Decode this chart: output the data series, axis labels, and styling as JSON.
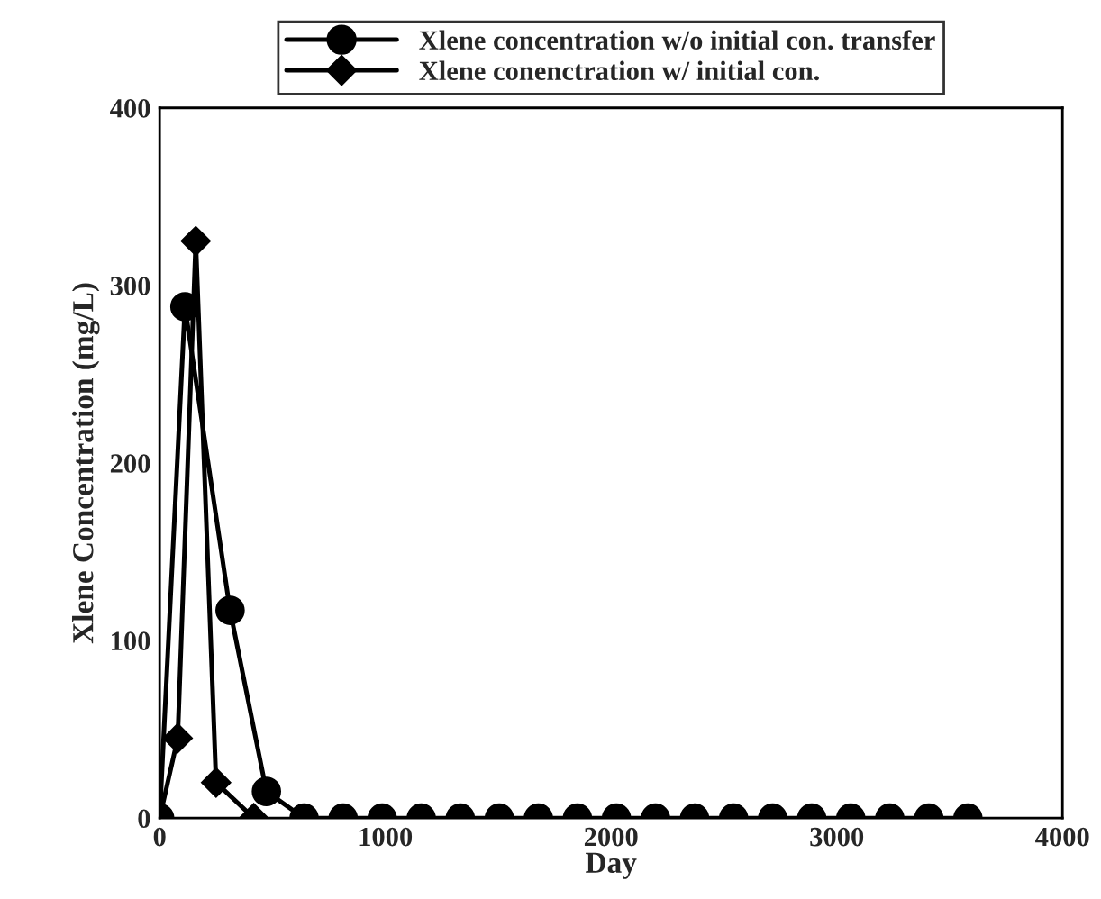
{
  "chart_data": {
    "type": "line",
    "xlabel": "Day",
    "ylabel": "Xlene Concentration (mg/L)",
    "xlim": [
      0,
      4000
    ],
    "ylim": [
      0,
      400
    ],
    "xticks": [
      0,
      1000,
      2000,
      3000,
      4000
    ],
    "yticks": [
      0,
      100,
      200,
      300,
      400
    ],
    "grid": false,
    "legend": "top",
    "line_style": "solid",
    "series": [
      {
        "name": "Xlene concentration w/o initial con. transfer",
        "color": "#000000",
        "marker": "circle",
        "x": [
          0,
          112,
          312,
          473,
          640,
          813,
          986,
          1159,
          1332,
          1505,
          1678,
          1851,
          2024,
          2197,
          2370,
          2543,
          2716,
          2889,
          3062,
          3235,
          3408,
          3581
        ],
        "values": [
          0,
          288,
          117,
          15,
          0,
          0,
          0,
          0,
          0,
          0,
          0,
          0,
          0,
          0,
          0,
          0,
          0,
          0,
          0,
          0,
          0,
          0
        ]
      },
      {
        "name": "Xlene conenctration w/ initial con.",
        "color": "#000000",
        "marker": "diamond",
        "x": [
          0,
          80,
          160,
          250,
          417
        ],
        "values": [
          0,
          45,
          325,
          20,
          0
        ]
      }
    ]
  }
}
